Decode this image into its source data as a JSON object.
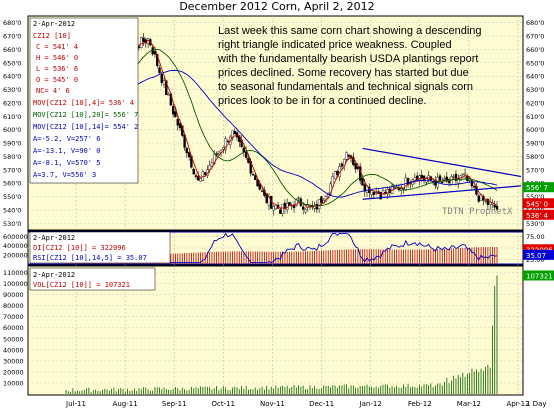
{
  "watermark": "TDTN ProphetX",
  "period": "1 Day",
  "legends": {
    "date": "2-Apr-2012",
    "symbol": "CZ12 [10]",
    "close": "C = 541' 4",
    "high": "H = 546' 0",
    "low": "L = 536' 6",
    "open": "O = 545' 0",
    "change": "NC= 4' 6",
    "mov10": "MOV[CZ12 [10],4]= 536' 4",
    "mov20": "MOV[CZ12 [10],20]= 556' 7",
    "mov40": "MOV[CZ12 [10],14]= 554' 2",
    "a1": "A=-5.2, V=257' 6",
    "a2": "A=-13.1, V=90' 0",
    "a3": "A=-8.1, V=570' 5",
    "a4": "A=3.7, V=556' 3",
    "oi_date": "2-Apr-2012",
    "oi": "OI[CZ12 [10]] = 322096",
    "rsi": "RSI[CZ12 [10],14,5] = 35.07",
    "vol_date": "2-Apr-2012",
    "vol": "VOL[CZ12 [10]] = 107321"
  },
  "colors": {
    "background": "#fffbd0",
    "up": "#ffffff",
    "down": "#000000",
    "ma_fast": "#c00000",
    "ma_mid": "#006000",
    "ma_slow": "#0000c0",
    "trendline": "#0000c0",
    "oi": "#c00000",
    "rsi": "#0000c0",
    "volume": "#006000",
    "marker_green": "#00a000",
    "marker_red": "#e00000",
    "marker_blue": "#0000d0"
  },
  "chart_data": {
    "type": "candlestick",
    "title": "December 2012 Corn, April 2, 2012",
    "annotation": "Last week this same corn chart showing a descending right triangle indicated price weakness. Coupled with the fundamentally bearish USDA plantings report prices declined. Some recovery has started but due to seasonal fundamentals and technical signals corn prices look to be in for a continued decline.",
    "x_ticks": [
      "Jul-11",
      "Aug-11",
      "Sep-11",
      "Oct-11",
      "Nov-11",
      "Dec-11",
      "Jan-12",
      "Feb-12",
      "Mar-12",
      "Apr-12"
    ],
    "price": {
      "ylim": [
        525,
        685
      ],
      "y_ticks": [
        530,
        540,
        550,
        560,
        570,
        580,
        590,
        600,
        610,
        620,
        630,
        640,
        650,
        660,
        670,
        680
      ],
      "y_tick_labels": [
        "530'0",
        "540'0",
        "550'0",
        "560'0",
        "570'0",
        "580'0",
        "590'0",
        "600'0",
        "610'0",
        "620'0",
        "630'0",
        "640'0",
        "650'0",
        "660'0",
        "670'0",
        "680'0"
      ],
      "close_path": [
        [
          "Jul-11",
          610
        ],
        [
          "Jul-11 mid",
          605
        ],
        [
          "Aug-11",
          632
        ],
        [
          "Aug-11 mid",
          655
        ],
        [
          "Aug-11 late",
          662
        ],
        [
          "Sep-11",
          668
        ],
        [
          "Sep-11 mid",
          630
        ],
        [
          "Sep-11 late",
          595
        ],
        [
          "Oct-11",
          560
        ],
        [
          "Oct-11 mid",
          580
        ],
        [
          "Oct-11 late",
          598
        ],
        [
          "Nov-11",
          575
        ],
        [
          "Nov-11 mid",
          548
        ],
        [
          "Nov-11 late",
          540
        ],
        [
          "Dec-11",
          546
        ],
        [
          "Dec-11 mid",
          540
        ],
        [
          "Dec-11 late",
          560
        ],
        [
          "Jan-12",
          585
        ],
        [
          "Jan-12 mid",
          558
        ],
        [
          "Jan-12 late",
          552
        ],
        [
          "Feb-12",
          556
        ],
        [
          "Feb-12 mid",
          566
        ],
        [
          "Feb-12 late",
          562
        ],
        [
          "Mar-12",
          560
        ],
        [
          "Mar-12 mid",
          565
        ],
        [
          "Mar-12 late",
          548
        ],
        [
          "Apr-12",
          541
        ]
      ],
      "last_values": {
        "green": "556' 7",
        "red": "545' 0",
        "red2": "536' 4",
        "price": "541' 4"
      },
      "trendlines": [
        {
          "name": "resistance",
          "from": [
            "Jan-12",
            586
          ],
          "to": [
            "Apr-12",
            565
          ]
        },
        {
          "name": "support",
          "from": [
            "Jan-12",
            548
          ],
          "to": [
            "Apr-12",
            558
          ]
        }
      ]
    },
    "open_interest": {
      "ylim": [
        0,
        700000
      ],
      "y_ticks": [
        200000,
        400000,
        600000
      ],
      "y_tick_labels": [
        "200000",
        "400000",
        "600000"
      ],
      "last": "322096"
    },
    "rsi": {
      "ylim": [
        15,
        85
      ],
      "y_ticks": [
        25,
        50,
        75
      ],
      "y_tick_labels": [
        "25.00",
        "50.00",
        "75.00"
      ],
      "bands": [
        15,
        85
      ],
      "last": "35.07"
    },
    "volume": {
      "ylim": [
        0,
        115000
      ],
      "y_ticks": [
        10000,
        20000,
        30000,
        40000,
        50000,
        60000,
        70000,
        80000,
        90000,
        100000,
        110000
      ],
      "y_tick_labels": [
        "10000",
        "20000",
        "30000",
        "40000",
        "50000",
        "60000",
        "70000",
        "80000",
        "90000",
        "100000",
        "110000"
      ],
      "last": "107321"
    }
  }
}
